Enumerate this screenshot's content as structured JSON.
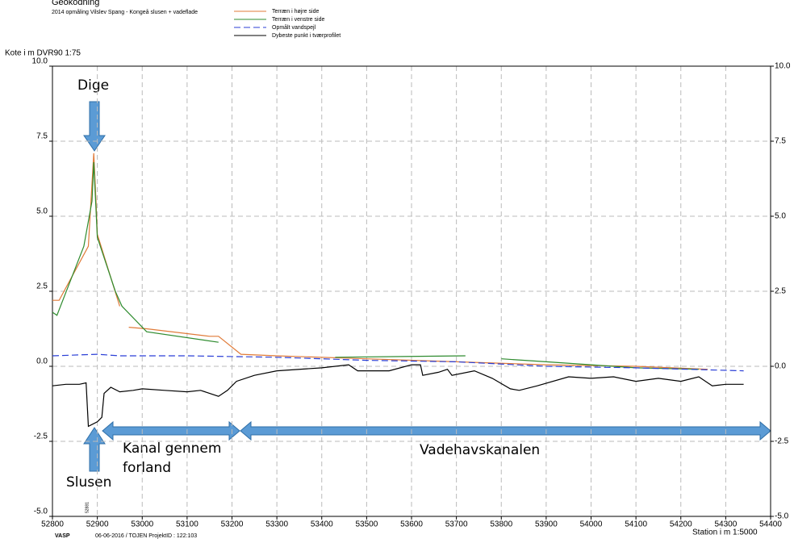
{
  "chart_data": {
    "type": "line",
    "title": "Geokodning",
    "subtitle": "2014 opmåling Vilslev Spang - Kongeå slusen + vadeflade",
    "ylabel": "Kote i m DVR90 1:75",
    "xlabel": "Station i m  1:5000",
    "footer": [
      "VASP",
      "06-06-2016 / TOJEN   ProjektID : 122:103"
    ],
    "annotations": [
      "Dige",
      "Slusen",
      "Kanal gennem",
      "forland",
      "Vadehavskanalen",
      "52881"
    ],
    "xlim": [
      52800,
      54400
    ],
    "xticks": [
      52800,
      52900,
      53000,
      53100,
      53200,
      53300,
      53400,
      53500,
      53600,
      53700,
      53800,
      53900,
      54000,
      54100,
      54200,
      54300,
      54400
    ],
    "ylim": [
      -5,
      10
    ],
    "yticks": [
      {
        "value": 10,
        "label": "10.0"
      },
      {
        "value": 7.5,
        "label": "7.5"
      },
      {
        "value": 5,
        "label": "5.0"
      },
      {
        "value": 2.5,
        "label": "2.5"
      },
      {
        "value": 0,
        "label": "0.0"
      },
      {
        "value": -2.5,
        "label": "-2.5"
      },
      {
        "value": -5,
        "label": "-5.0"
      }
    ],
    "y2lim": [
      -5,
      10
    ],
    "y2ticks": [
      {
        "value": 10,
        "label": "10.0"
      },
      {
        "value": 7.5,
        "label": "7.5"
      },
      {
        "value": 5,
        "label": "5.0"
      },
      {
        "value": 2.5,
        "label": "2.5"
      },
      {
        "value": 0,
        "label": "0.0"
      },
      {
        "value": -2.5,
        "label": "-2.5"
      },
      {
        "value": -5,
        "label": "-5.0"
      }
    ],
    "grid": true,
    "series": [
      {
        "name": "Terræn i højre side",
        "color": "#e07b39",
        "dashed": false,
        "x": [
          52800,
          52815,
          52880,
          52892,
          52897,
          52900,
          52950,
          52960,
          52970,
          53010,
          53150,
          53170,
          53220,
          53300,
          53500,
          53700,
          53900,
          54100,
          54260
        ],
        "values": [
          2.2,
          2.2,
          4.0,
          7.1,
          5.5,
          4.4,
          2.0,
          null,
          1.3,
          1.25,
          1.0,
          1.0,
          0.4,
          0.35,
          0.25,
          0.15,
          0.05,
          0.0,
          -0.1
        ]
      },
      {
        "name": "Terræn i venstre side",
        "color": "#2e8b2e",
        "dashed": false,
        "x": [
          52800,
          52810,
          52870,
          52888,
          52892,
          52900,
          52940,
          52955,
          53010,
          53170,
          53190,
          53430,
          53720,
          53760,
          53800,
          53900,
          54000,
          54100,
          54240
        ],
        "values": [
          1.8,
          1.7,
          4.0,
          5.5,
          6.8,
          4.3,
          2.5,
          2.0,
          1.15,
          0.8,
          null,
          0.3,
          0.35,
          null,
          0.25,
          0.15,
          0.05,
          -0.05,
          -0.1
        ]
      },
      {
        "name": "Opmålt vandspejl",
        "color": "#2b3fd6",
        "dashed": true,
        "x": [
          52800,
          52900,
          52950,
          53100,
          53300,
          53500,
          53700,
          53900,
          54100,
          54340
        ],
        "values": [
          0.35,
          0.4,
          0.35,
          0.35,
          0.3,
          0.2,
          0.15,
          0.0,
          -0.05,
          -0.15
        ]
      },
      {
        "name": "Dybeste punkt i tværprofilet",
        "color": "#000000",
        "dashed": false,
        "x": [
          52800,
          52830,
          52860,
          52875,
          52880,
          52900,
          52910,
          52915,
          52930,
          52950,
          52980,
          53000,
          53050,
          53100,
          53130,
          53170,
          53190,
          53210,
          53250,
          53300,
          53400,
          53460,
          53480,
          53550,
          53600,
          53620,
          53625,
          53660,
          53680,
          53690,
          53740,
          53780,
          53820,
          53840,
          53880,
          53950,
          54000,
          54050,
          54100,
          54150,
          54200,
          54240,
          54270,
          54300,
          54340
        ],
        "values": [
          -0.65,
          -0.6,
          -0.6,
          -0.55,
          -2.0,
          -1.85,
          -1.7,
          -0.9,
          -0.7,
          -0.85,
          -0.8,
          -0.75,
          -0.8,
          -0.85,
          -0.8,
          -1.0,
          -0.8,
          -0.5,
          -0.3,
          -0.15,
          -0.05,
          0.05,
          -0.15,
          -0.15,
          0.05,
          0.05,
          -0.3,
          -0.2,
          -0.1,
          -0.3,
          -0.15,
          -0.4,
          -0.75,
          -0.8,
          -0.65,
          -0.35,
          -0.4,
          -0.35,
          -0.5,
          -0.4,
          -0.5,
          -0.35,
          -0.65,
          -0.6,
          -0.6
        ]
      }
    ]
  }
}
